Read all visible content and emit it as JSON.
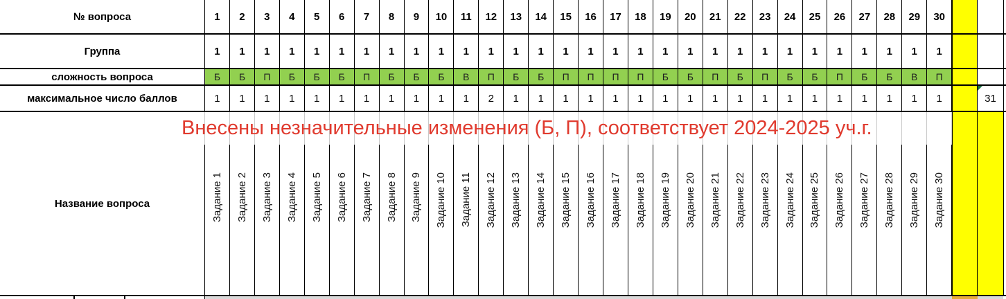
{
  "rows": {
    "question_number": {
      "label": "№ вопроса",
      "values": [
        "1",
        "2",
        "3",
        "4",
        "5",
        "6",
        "7",
        "8",
        "9",
        "10",
        "11",
        "12",
        "13",
        "14",
        "15",
        "16",
        "17",
        "18",
        "19",
        "20",
        "21",
        "22",
        "23",
        "24",
        "25",
        "26",
        "27",
        "28",
        "29",
        "30"
      ]
    },
    "group": {
      "label": "Группа",
      "values": [
        "1",
        "1",
        "1",
        "1",
        "1",
        "1",
        "1",
        "1",
        "1",
        "1",
        "1",
        "1",
        "1",
        "1",
        "1",
        "1",
        "1",
        "1",
        "1",
        "1",
        "1",
        "1",
        "1",
        "1",
        "1",
        "1",
        "1",
        "1",
        "1",
        "1"
      ]
    },
    "difficulty": {
      "label": "сложность вопроса",
      "values": [
        "Б",
        "Б",
        "П",
        "Б",
        "Б",
        "Б",
        "П",
        "Б",
        "Б",
        "Б",
        "В",
        "П",
        "Б",
        "Б",
        "П",
        "П",
        "П",
        "П",
        "Б",
        "Б",
        "П",
        "Б",
        "П",
        "Б",
        "Б",
        "П",
        "Б",
        "Б",
        "В",
        "П"
      ]
    },
    "max_points": {
      "label": "максимальное число баллов",
      "values": [
        "1",
        "1",
        "1",
        "1",
        "1",
        "1",
        "1",
        "1",
        "1",
        "1",
        "1",
        "2",
        "1",
        "1",
        "1",
        "1",
        "1",
        "1",
        "1",
        "1",
        "1",
        "1",
        "1",
        "1",
        "1",
        "1",
        "1",
        "1",
        "1",
        "1"
      ],
      "total": "31"
    },
    "note": {
      "text": "Внесены незначительные изменения (Б, П), соответствует 2024-2025 уч.г."
    },
    "question_name": {
      "label": "Название вопроса",
      "values": [
        "Задание 1",
        "Задание 2",
        "Задание 3",
        "Задание 4",
        "Задание 5",
        "Задание 6",
        "Задание 7",
        "Задание 8",
        "Задание 9",
        "Задание 10",
        "Задание 11",
        "Задание 12",
        "Задание 13",
        "Задание 14",
        "Задание 15",
        "Задание 16",
        "Задание 17",
        "Задание 18",
        "Задание 19",
        "Задание 20",
        "Задание 21",
        "Задание 22",
        "Задание 23",
        "Задание 24",
        "Задание 25",
        "Задание 26",
        "Задание 27",
        "Задание 28",
        "Задание 29",
        "Задание 30"
      ]
    }
  },
  "colors": {
    "difficulty_green": "#92d050",
    "highlight_yellow": "#ffff00",
    "note_red": "#e03a2e",
    "bottom_gray": "#d9d9d9",
    "bottom_orange": "#e6ac3a",
    "light_grid": "#c9c9c9",
    "error_triangle_green": "#1e7145"
  }
}
